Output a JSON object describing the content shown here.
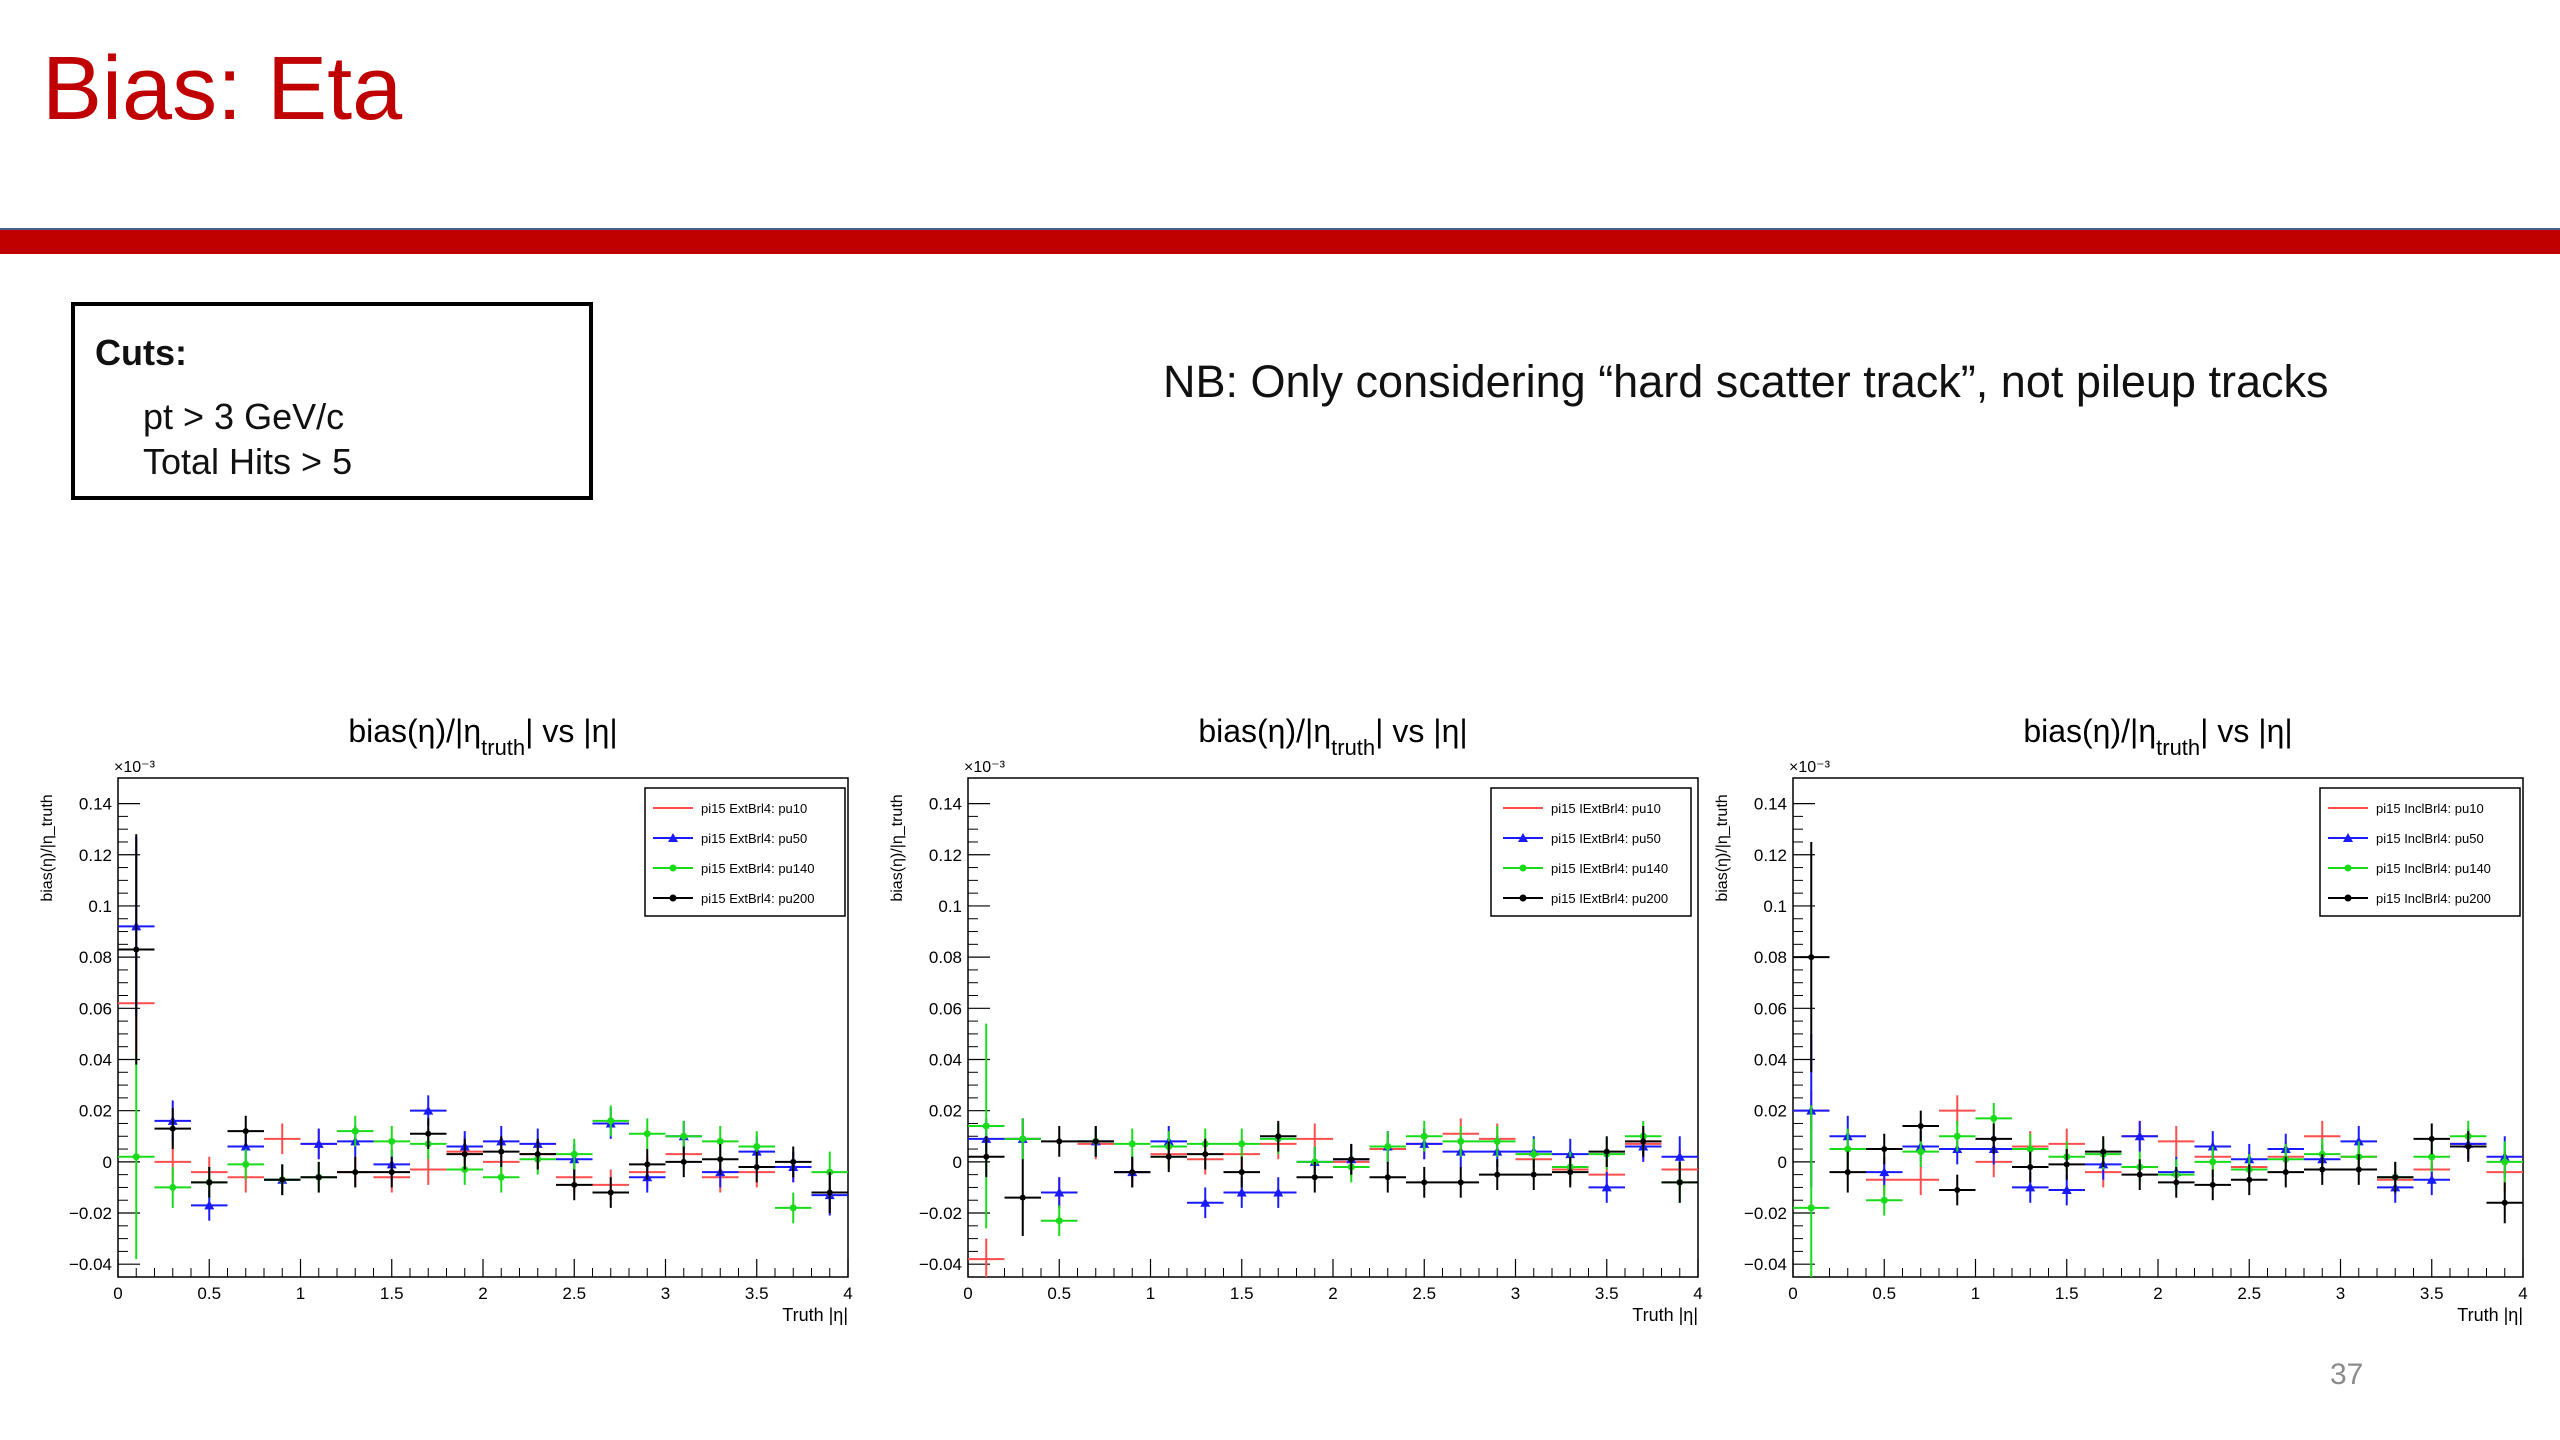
{
  "slide": {
    "title": "Bias: Eta",
    "cuts_heading": "Cuts:",
    "cuts": [
      "pt > 3 GeV/c",
      "Total Hits > 5"
    ],
    "note": "NB: Only considering “hard scatter track”, not pileup tracks",
    "page_number": "37",
    "title_color": "#c00000"
  },
  "chart_data": [
    {
      "type": "scatter",
      "title": "bias(η)/|η_truth| vs |η|",
      "ylabel": "bias(η)/|η_truth",
      "xlabel": "Truth |η|",
      "y_exponent_label": "×10⁻³",
      "xlim": [
        0,
        4
      ],
      "ylim": [
        -0.045,
        0.15
      ],
      "xticks": [
        "0",
        "0.5",
        "1",
        "1.5",
        "2",
        "2.5",
        "3",
        "3.5",
        "4"
      ],
      "yticks": [
        "−0.04",
        "−0.02",
        "0",
        "0.02",
        "0.04",
        "0.06",
        "0.08",
        "0.1",
        "0.12",
        "0.14"
      ],
      "legend_position": "top-right",
      "series": [
        {
          "name": "pi15 ExtBrl4: pu10",
          "color": "#ff4d4d",
          "marker": "none",
          "x": [
            0.1,
            0.3,
            0.5,
            0.7,
            0.9,
            1.1,
            1.3,
            1.5,
            1.7,
            1.9,
            2.1,
            2.3,
            2.5,
            2.7,
            2.9,
            3.1,
            3.3,
            3.5,
            3.7,
            3.9
          ],
          "y": [
            0.062,
            0.0,
            -0.004,
            -0.006,
            0.009,
            0.007,
            -0.004,
            -0.006,
            -0.003,
            0.004,
            0.0,
            0.003,
            -0.006,
            -0.009,
            -0.004,
            0.003,
            -0.006,
            -0.004,
            -0.002,
            -0.012
          ],
          "yerr": [
            0.02,
            0.008,
            0.006,
            0.006,
            0.006,
            0.006,
            0.006,
            0.006,
            0.006,
            0.006,
            0.006,
            0.006,
            0.006,
            0.006,
            0.006,
            0.006,
            0.006,
            0.006,
            0.006,
            0.008
          ]
        },
        {
          "name": "pi15 ExtBrl4: pu50",
          "color": "#1a1aff",
          "marker": "triangle",
          "x": [
            0.1,
            0.3,
            0.5,
            0.7,
            0.9,
            1.1,
            1.3,
            1.5,
            1.7,
            1.9,
            2.1,
            2.3,
            2.5,
            2.7,
            2.9,
            3.1,
            3.3,
            3.5,
            3.7,
            3.9
          ],
          "y": [
            0.092,
            0.016,
            -0.017,
            0.006,
            -0.007,
            0.007,
            0.008,
            -0.001,
            0.02,
            0.006,
            0.008,
            0.007,
            0.001,
            0.015,
            -0.006,
            0.01,
            -0.004,
            0.004,
            -0.002,
            -0.013
          ],
          "yerr": [
            0.035,
            0.008,
            0.006,
            0.006,
            0.006,
            0.006,
            0.006,
            0.006,
            0.006,
            0.006,
            0.006,
            0.006,
            0.006,
            0.006,
            0.006,
            0.006,
            0.006,
            0.006,
            0.006,
            0.008
          ]
        },
        {
          "name": "pi15 ExtBrl4: pu140",
          "color": "#1adb1a",
          "marker": "star",
          "x": [
            0.1,
            0.3,
            0.5,
            0.7,
            0.9,
            1.1,
            1.3,
            1.5,
            1.7,
            1.9,
            2.1,
            2.3,
            2.5,
            2.7,
            2.9,
            3.1,
            3.3,
            3.5,
            3.7,
            3.9
          ],
          "y": [
            0.002,
            -0.01,
            -0.008,
            -0.001,
            -0.007,
            -0.006,
            0.012,
            0.008,
            0.007,
            -0.003,
            -0.006,
            0.001,
            0.003,
            0.016,
            0.011,
            0.01,
            0.008,
            0.006,
            -0.018,
            -0.004
          ],
          "yerr": [
            0.04,
            0.008,
            0.006,
            0.006,
            0.006,
            0.006,
            0.006,
            0.006,
            0.006,
            0.006,
            0.006,
            0.006,
            0.006,
            0.006,
            0.006,
            0.006,
            0.006,
            0.006,
            0.006,
            0.008
          ]
        },
        {
          "name": "pi15 ExtBrl4: pu200",
          "color": "#000000",
          "marker": "cross",
          "x": [
            0.1,
            0.3,
            0.5,
            0.7,
            0.9,
            1.1,
            1.3,
            1.5,
            1.7,
            1.9,
            2.1,
            2.3,
            2.5,
            2.7,
            2.9,
            3.1,
            3.3,
            3.5,
            3.7,
            3.9
          ],
          "y": [
            0.083,
            0.013,
            -0.008,
            0.012,
            -0.007,
            -0.006,
            -0.004,
            -0.004,
            0.011,
            0.003,
            0.004,
            0.003,
            -0.009,
            -0.012,
            -0.001,
            0.0,
            0.001,
            -0.002,
            0.0,
            -0.012
          ],
          "yerr": [
            0.045,
            0.008,
            0.006,
            0.006,
            0.006,
            0.006,
            0.006,
            0.006,
            0.006,
            0.006,
            0.006,
            0.006,
            0.006,
            0.006,
            0.006,
            0.006,
            0.006,
            0.006,
            0.006,
            0.008
          ]
        }
      ]
    },
    {
      "type": "scatter",
      "title": "bias(η)/|η_truth| vs |η|",
      "ylabel": "bias(η)/|η_truth",
      "xlabel": "Truth |η|",
      "y_exponent_label": "×10⁻³",
      "xlim": [
        0,
        4
      ],
      "ylim": [
        -0.045,
        0.15
      ],
      "xticks": [
        "0",
        "0.5",
        "1",
        "1.5",
        "2",
        "2.5",
        "3",
        "3.5",
        "4"
      ],
      "yticks": [
        "−0.04",
        "−0.02",
        "0",
        "0.02",
        "0.04",
        "0.06",
        "0.08",
        "0.1",
        "0.12",
        "0.14"
      ],
      "legend_position": "top-right",
      "series": [
        {
          "name": "pi15 IExtBrl4: pu10",
          "color": "#ff4d4d",
          "marker": "none",
          "x": [
            0.1,
            0.3,
            0.5,
            0.7,
            0.9,
            1.1,
            1.3,
            1.5,
            1.7,
            1.9,
            2.1,
            2.3,
            2.5,
            2.7,
            2.9,
            3.1,
            3.3,
            3.5,
            3.7,
            3.9
          ],
          "y": [
            -0.038,
            0.009,
            -0.012,
            0.007,
            -0.004,
            0.003,
            0.001,
            0.003,
            0.007,
            0.009,
            0.0,
            0.005,
            0.007,
            0.011,
            0.009,
            0.001,
            -0.003,
            -0.005,
            0.007,
            -0.003
          ],
          "yerr": [
            0.008,
            0.008,
            0.006,
            0.006,
            0.006,
            0.006,
            0.006,
            0.006,
            0.006,
            0.006,
            0.006,
            0.006,
            0.006,
            0.006,
            0.006,
            0.006,
            0.006,
            0.006,
            0.006,
            0.008
          ]
        },
        {
          "name": "pi15 IExtBrl4: pu50",
          "color": "#1a1aff",
          "marker": "triangle",
          "x": [
            0.1,
            0.3,
            0.5,
            0.7,
            0.9,
            1.1,
            1.3,
            1.5,
            1.7,
            1.9,
            2.1,
            2.3,
            2.5,
            2.7,
            2.9,
            3.1,
            3.3,
            3.5,
            3.7,
            3.9
          ],
          "y": [
            0.009,
            0.009,
            -0.012,
            0.008,
            -0.004,
            0.008,
            -0.016,
            -0.012,
            -0.012,
            0.0,
            0.001,
            0.006,
            0.007,
            0.004,
            0.004,
            0.004,
            0.003,
            -0.01,
            0.006,
            0.002
          ],
          "yerr": [
            0.008,
            0.008,
            0.006,
            0.006,
            0.006,
            0.006,
            0.006,
            0.006,
            0.006,
            0.006,
            0.006,
            0.006,
            0.006,
            0.006,
            0.006,
            0.006,
            0.006,
            0.006,
            0.006,
            0.008
          ]
        },
        {
          "name": "pi15 IExtBrl4: pu140",
          "color": "#1adb1a",
          "marker": "star",
          "x": [
            0.1,
            0.3,
            0.5,
            0.7,
            0.9,
            1.1,
            1.3,
            1.5,
            1.7,
            1.9,
            2.1,
            2.3,
            2.5,
            2.7,
            2.9,
            3.1,
            3.3,
            3.5,
            3.7,
            3.9
          ],
          "y": [
            0.014,
            0.009,
            -0.023,
            0.008,
            0.007,
            0.006,
            0.007,
            0.007,
            0.009,
            0.0,
            -0.002,
            0.006,
            0.01,
            0.008,
            0.008,
            0.003,
            -0.002,
            0.003,
            0.01,
            -0.008
          ],
          "yerr": [
            0.04,
            0.008,
            0.006,
            0.006,
            0.006,
            0.006,
            0.006,
            0.006,
            0.006,
            0.006,
            0.006,
            0.006,
            0.006,
            0.006,
            0.006,
            0.006,
            0.006,
            0.006,
            0.006,
            0.008
          ]
        },
        {
          "name": "pi15 IExtBrl4: pu200",
          "color": "#000000",
          "marker": "cross",
          "x": [
            0.1,
            0.3,
            0.5,
            0.7,
            0.9,
            1.1,
            1.3,
            1.5,
            1.7,
            1.9,
            2.1,
            2.3,
            2.5,
            2.7,
            2.9,
            3.1,
            3.3,
            3.5,
            3.7,
            3.9
          ],
          "y": [
            0.002,
            -0.014,
            0.008,
            0.008,
            -0.004,
            0.002,
            0.003,
            -0.004,
            0.01,
            -0.006,
            0.001,
            -0.006,
            -0.008,
            -0.008,
            -0.005,
            -0.005,
            -0.004,
            0.004,
            0.008,
            -0.008
          ],
          "yerr": [
            0.008,
            0.015,
            0.006,
            0.006,
            0.006,
            0.006,
            0.006,
            0.006,
            0.006,
            0.006,
            0.006,
            0.006,
            0.006,
            0.006,
            0.006,
            0.006,
            0.006,
            0.006,
            0.006,
            0.008
          ]
        }
      ]
    },
    {
      "type": "scatter",
      "title": "bias(η)/|η_truth| vs |η|",
      "ylabel": "bias(η)/|η_truth",
      "xlabel": "Truth |η|",
      "y_exponent_label": "×10⁻³",
      "xlim": [
        0,
        4
      ],
      "ylim": [
        -0.045,
        0.15
      ],
      "xticks": [
        "0",
        "0.5",
        "1",
        "1.5",
        "2",
        "2.5",
        "3",
        "3.5",
        "4"
      ],
      "yticks": [
        "−0.04",
        "−0.02",
        "0",
        "0.02",
        "0.04",
        "0.06",
        "0.08",
        "0.1",
        "0.12",
        "0.14"
      ],
      "legend_position": "top-right",
      "series": [
        {
          "name": "pi15 InclBrl4: pu10",
          "color": "#ff4d4d",
          "marker": "none",
          "x": [
            0.1,
            0.3,
            0.5,
            0.7,
            0.9,
            1.1,
            1.3,
            1.5,
            1.7,
            1.9,
            2.1,
            2.3,
            2.5,
            2.7,
            2.9,
            3.1,
            3.3,
            3.5,
            3.7,
            3.9
          ],
          "y": [
            0.02,
            0.005,
            -0.007,
            -0.007,
            0.02,
            0.0,
            0.006,
            0.007,
            -0.004,
            0.01,
            0.008,
            0.002,
            -0.002,
            0.002,
            0.01,
            0.002,
            -0.007,
            -0.003,
            0.007,
            -0.004
          ],
          "yerr": [
            0.008,
            0.008,
            0.006,
            0.006,
            0.006,
            0.006,
            0.006,
            0.006,
            0.006,
            0.006,
            0.006,
            0.006,
            0.006,
            0.006,
            0.006,
            0.006,
            0.006,
            0.006,
            0.006,
            0.008
          ]
        },
        {
          "name": "pi15 InclBrl4: pu50",
          "color": "#1a1aff",
          "marker": "triangle",
          "x": [
            0.1,
            0.3,
            0.5,
            0.7,
            0.9,
            1.1,
            1.3,
            1.5,
            1.7,
            1.9,
            2.1,
            2.3,
            2.5,
            2.7,
            2.9,
            3.1,
            3.3,
            3.5,
            3.7,
            3.9
          ],
          "y": [
            0.02,
            0.01,
            -0.004,
            0.006,
            0.005,
            0.005,
            -0.01,
            -0.011,
            -0.001,
            0.01,
            -0.004,
            0.006,
            0.001,
            0.005,
            0.001,
            0.008,
            -0.01,
            -0.007,
            0.007,
            0.002
          ],
          "yerr": [
            0.03,
            0.008,
            0.006,
            0.006,
            0.006,
            0.006,
            0.006,
            0.006,
            0.006,
            0.006,
            0.006,
            0.006,
            0.006,
            0.006,
            0.006,
            0.006,
            0.006,
            0.006,
            0.006,
            0.008
          ]
        },
        {
          "name": "pi15 InclBrl4: pu140",
          "color": "#1adb1a",
          "marker": "star",
          "x": [
            0.1,
            0.3,
            0.5,
            0.7,
            0.9,
            1.1,
            1.3,
            1.5,
            1.7,
            1.9,
            2.1,
            2.3,
            2.5,
            2.7,
            2.9,
            3.1,
            3.3,
            3.5,
            3.7,
            3.9
          ],
          "y": [
            -0.018,
            0.005,
            -0.015,
            0.004,
            0.01,
            0.017,
            0.005,
            0.002,
            0.003,
            -0.002,
            -0.005,
            0.0,
            -0.003,
            0.001,
            0.003,
            0.002,
            -0.006,
            0.002,
            0.01,
            0.0
          ],
          "yerr": [
            0.04,
            0.008,
            0.006,
            0.006,
            0.006,
            0.006,
            0.006,
            0.006,
            0.006,
            0.006,
            0.006,
            0.006,
            0.006,
            0.006,
            0.006,
            0.006,
            0.006,
            0.006,
            0.006,
            0.008
          ]
        },
        {
          "name": "pi15 InclBrl4: pu200",
          "color": "#000000",
          "marker": "cross",
          "x": [
            0.1,
            0.3,
            0.5,
            0.7,
            0.9,
            1.1,
            1.3,
            1.5,
            1.7,
            1.9,
            2.1,
            2.3,
            2.5,
            2.7,
            2.9,
            3.1,
            3.3,
            3.5,
            3.7,
            3.9
          ],
          "y": [
            0.08,
            -0.004,
            0.005,
            0.014,
            -0.011,
            0.009,
            -0.002,
            -0.001,
            0.004,
            -0.005,
            -0.008,
            -0.009,
            -0.007,
            -0.004,
            -0.003,
            -0.003,
            -0.006,
            0.009,
            0.006,
            -0.016
          ],
          "yerr": [
            0.045,
            0.008,
            0.006,
            0.006,
            0.006,
            0.006,
            0.006,
            0.006,
            0.006,
            0.006,
            0.006,
            0.006,
            0.006,
            0.006,
            0.006,
            0.006,
            0.006,
            0.006,
            0.006,
            0.008
          ]
        }
      ]
    }
  ]
}
